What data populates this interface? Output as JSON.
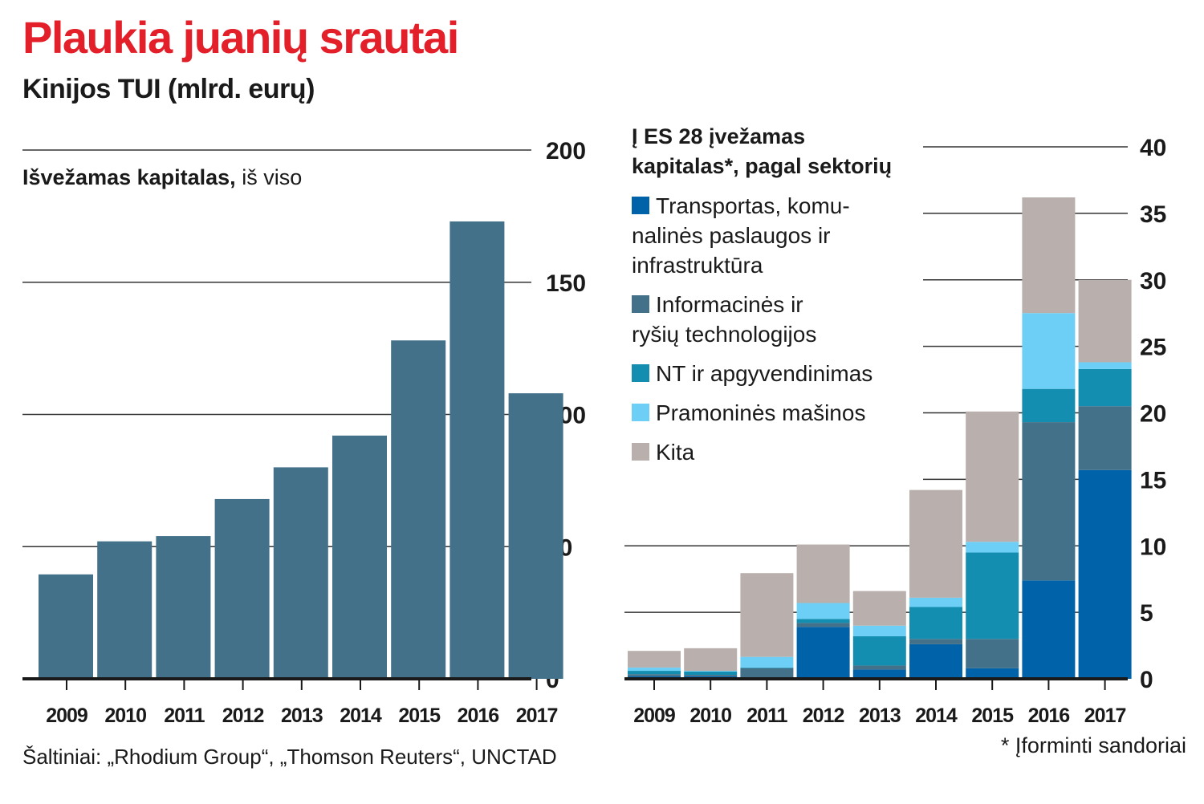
{
  "title": "Plaukia juanių srautai",
  "subtitle": "Kinijos TUI (mlrd. eurų)",
  "source": "Šaltiniai: „Rhodium Group“, „Thomson Reuters“, UNCTAD",
  "footnote": "* Įforminti sandoriai",
  "chart_data": [
    {
      "type": "bar",
      "title": "Išvežamas kapitalas, iš viso",
      "title_bold": "Išvežamas kapitalas,",
      "title_rest": " iš viso",
      "xlabel": "",
      "ylabel": "mlrd. eurų",
      "categories": [
        "2009",
        "2010",
        "2011",
        "2012",
        "2013",
        "2014",
        "2015",
        "2016",
        "2017"
      ],
      "values": [
        39.5,
        52,
        54,
        68,
        80,
        92,
        128,
        173,
        108
      ],
      "ylim": [
        0,
        200
      ],
      "yticks": [
        "0",
        "50",
        "100",
        "150",
        "200"
      ],
      "ytick_values": [
        0,
        50,
        100,
        150,
        200
      ],
      "color": "#437189",
      "grid": true,
      "yaxis_side": "right"
    },
    {
      "type": "bar",
      "stacked": true,
      "title": "Į ES 28 įvežamas kapitalas*, pagal sektorių",
      "title_lines": [
        "Į ES 28 įvežamas",
        "kapitalas*, pagal sektorių"
      ],
      "xlabel": "",
      "ylabel": "mlrd. eurų",
      "categories": [
        "2009",
        "2010",
        "2011",
        "2012",
        "2013",
        "2014",
        "2015",
        "2016",
        "2017"
      ],
      "ylim": [
        0,
        40
      ],
      "yticks": [
        "0",
        "5",
        "10",
        "15",
        "20",
        "25",
        "30",
        "35",
        "40"
      ],
      "ytick_values": [
        0,
        5,
        10,
        15,
        20,
        25,
        30,
        35,
        40
      ],
      "grid": true,
      "yaxis_side": "right",
      "legend_position": "top-left",
      "series": [
        {
          "name": "Transportas, komunalinės paslaugos ir infrastruktūra",
          "legend_lines": [
            "Transportas, komu-",
            "nalinės paslaugos ir",
            "infrastruktūra"
          ],
          "color": "#0062a8",
          "values": [
            0.2,
            0.2,
            0.1,
            3.9,
            0.7,
            2.6,
            0.8,
            7.4,
            15.7
          ]
        },
        {
          "name": "Informacinės ir ryšių technologijos",
          "legend_lines": [
            "Informacinės ir",
            "ryšių technologijos"
          ],
          "color": "#437189",
          "values": [
            0.15,
            0.1,
            0.7,
            0.3,
            0.3,
            0.4,
            2.2,
            11.9,
            4.8
          ]
        },
        {
          "name": "NT ir apgyvendinimas",
          "legend_lines": [
            "NT ir apgyvendinimas"
          ],
          "color": "#138db0",
          "values": [
            0.25,
            0.25,
            0.05,
            0.3,
            2.2,
            2.4,
            6.5,
            2.5,
            2.8
          ]
        },
        {
          "name": "Pramoninės mašinos",
          "legend_lines": [
            "Pramoninės mašinos"
          ],
          "color": "#6ecff6",
          "values": [
            0.25,
            0.05,
            0.8,
            1.2,
            0.8,
            0.7,
            0.8,
            5.7,
            0.5
          ]
        },
        {
          "name": "Kita",
          "legend_lines": [
            "Kita"
          ],
          "color": "#b9afac",
          "values": [
            1.25,
            1.7,
            6.3,
            4.4,
            2.6,
            8.1,
            9.8,
            8.7,
            6.2
          ]
        }
      ]
    }
  ]
}
